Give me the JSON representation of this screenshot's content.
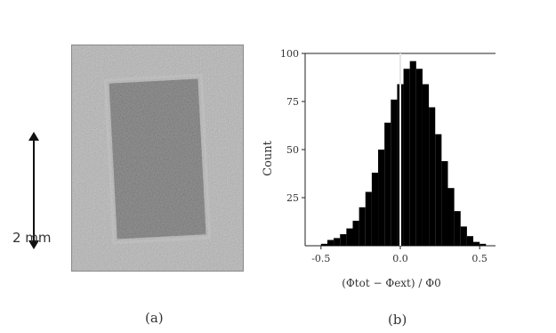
{
  "figure": {
    "panel_a": {
      "caption": "(a)",
      "scale_bar_label": "2 mm",
      "image_type": "grayscale noisy micrograph with darker speckled rectangular region"
    },
    "panel_b": {
      "caption": "(b)"
    }
  },
  "chart_data": {
    "type": "bar",
    "title": "",
    "xlabel": "(Φtot − Φext) / Φ0",
    "ylabel": "Count",
    "xlim": [
      -0.6,
      0.6
    ],
    "ylim": [
      0,
      100
    ],
    "xticks": [
      "-0.5",
      "0.0",
      "0.5"
    ],
    "yticks": [
      "25",
      "50",
      "75",
      "100"
    ],
    "grid": false,
    "vertical_reference_line": 0.0,
    "bar_color": "#000000",
    "bins_center": [
      -0.48,
      -0.44,
      -0.4,
      -0.36,
      -0.32,
      -0.28,
      -0.24,
      -0.2,
      -0.16,
      -0.12,
      -0.08,
      -0.04,
      0.0,
      0.04,
      0.08,
      0.12,
      0.16,
      0.2,
      0.24,
      0.28,
      0.32,
      0.36,
      0.4,
      0.44,
      0.48,
      0.52
    ],
    "counts": [
      1,
      3,
      4,
      6,
      9,
      13,
      20,
      28,
      38,
      50,
      64,
      76,
      84,
      92,
      96,
      92,
      84,
      72,
      58,
      44,
      30,
      18,
      10,
      5,
      2,
      1
    ]
  }
}
